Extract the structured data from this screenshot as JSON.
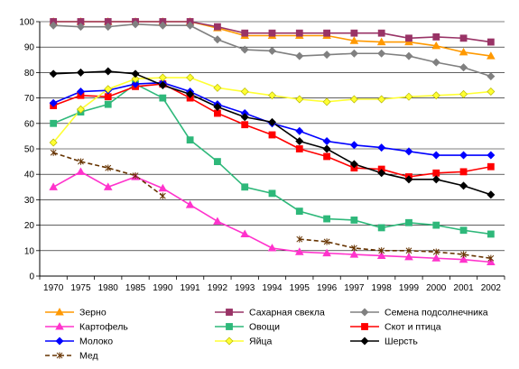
{
  "chart_data": {
    "type": "line",
    "title": "",
    "xlabel": "",
    "ylabel": "",
    "ylim": [
      0,
      100
    ],
    "yticks": [
      0,
      10,
      20,
      30,
      40,
      50,
      60,
      70,
      80,
      90,
      100
    ],
    "grid": "horizontal",
    "legend_position": "bottom",
    "categories": [
      "1970",
      "1975",
      "1980",
      "1985",
      "1990",
      "1991",
      "1992",
      "1993",
      "1994",
      "1995",
      "1996",
      "1997",
      "1998",
      "1999",
      "2000",
      "2001",
      "2002"
    ],
    "series": [
      {
        "name": "Зерно",
        "color": "#FF9900",
        "marker": "triangle",
        "values": [
          100,
          100,
          100,
          100,
          100,
          100,
          97.5,
          94.5,
          94.5,
          94.5,
          94.5,
          92.5,
          92,
          92,
          90.5,
          88,
          86.5
        ]
      },
      {
        "name": "Сахарная свекла",
        "color": "#993366",
        "marker": "square",
        "values": [
          100,
          100,
          100,
          100,
          100,
          100,
          98,
          95.5,
          95.5,
          95.5,
          95.5,
          95.5,
          95.5,
          93.5,
          94,
          93.5,
          92
        ]
      },
      {
        "name": "Семена подсолнечника",
        "color": "#808080",
        "marker": "diamond",
        "values": [
          98.5,
          98,
          98,
          99,
          98.5,
          98.5,
          93,
          89,
          88.5,
          86.5,
          87,
          87.5,
          87.5,
          86.5,
          84,
          82,
          78.5
        ]
      },
      {
        "name": "Картофель",
        "color": "#FF33CC",
        "marker": "triangle",
        "values": [
          35,
          41,
          35,
          39,
          34.5,
          28,
          21.5,
          16.5,
          11,
          9.5,
          9,
          8.5,
          8,
          7.5,
          7,
          6.5,
          5.5
        ]
      },
      {
        "name": "Овощи",
        "color": "#2EB87A",
        "marker": "square",
        "values": [
          60,
          64.5,
          67.5,
          75.5,
          70,
          53.5,
          45,
          35,
          32.5,
          25.5,
          22.5,
          22,
          19,
          21,
          20,
          18,
          16.5
        ]
      },
      {
        "name": "Скот и птица",
        "color": "#FF0000",
        "marker": "square",
        "values": [
          67,
          71,
          70.5,
          74.5,
          75.5,
          70,
          64,
          59.5,
          55.5,
          50,
          47,
          42.5,
          42,
          39,
          40.5,
          41,
          43
        ]
      },
      {
        "name": "Молоко",
        "color": "#0000FF",
        "marker": "diamond",
        "values": [
          68,
          72.5,
          73,
          75.5,
          76,
          72.5,
          67.5,
          64,
          60,
          57,
          53,
          51.5,
          50.5,
          49,
          47.5,
          47.5,
          47.5
        ]
      },
      {
        "name": "Яйца",
        "color": "#FFFF33",
        "marker": "diamond",
        "values": [
          52.5,
          65.5,
          73.5,
          77.5,
          78,
          78,
          74,
          72.5,
          71,
          69.5,
          68.5,
          69.5,
          69.5,
          70.5,
          71,
          71.5,
          72.5
        ]
      },
      {
        "name": "Шерсть",
        "color": "#000000",
        "marker": "diamond",
        "values": [
          79.5,
          80,
          80.5,
          79.5,
          75,
          71.5,
          66.5,
          62.5,
          60.5,
          53,
          50,
          44,
          40.5,
          38,
          38,
          35.5,
          32
        ]
      },
      {
        "name": "Мед",
        "color": "#663300",
        "marker": "star",
        "dashed": true,
        "values": [
          48.5,
          45,
          42.5,
          39.5,
          31.5,
          null,
          null,
          null,
          null,
          14.5,
          13.5,
          11,
          10,
          10,
          9.5,
          8.5,
          7
        ]
      }
    ]
  }
}
